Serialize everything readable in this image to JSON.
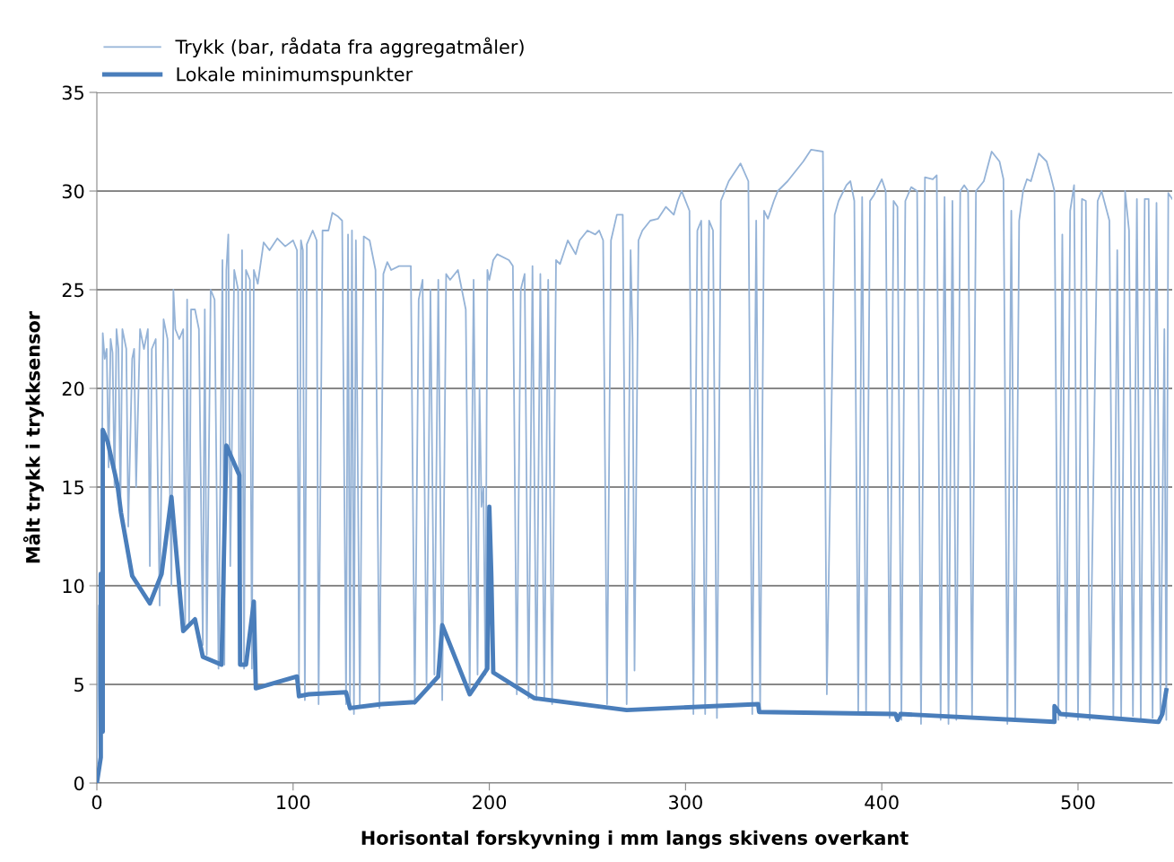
{
  "chart_data": {
    "type": "line",
    "xlabel": "Horisontal forskyvning i mm langs skivens overkant",
    "ylabel": "Målt trykk i trykksensor",
    "xlim": [
      0,
      548
    ],
    "xticks": [
      0,
      100,
      200,
      300,
      400,
      500
    ],
    "ylim": [
      0,
      35
    ],
    "yticks": [
      0,
      5,
      10,
      15,
      20,
      25,
      30,
      35
    ],
    "grid": "y",
    "legend": "top left",
    "marker": "none",
    "line_style": "solid",
    "series": [
      {
        "name": "Trykk (bar, rådata fra aggregatmåler)",
        "color": "#95b3d7",
        "x": [
          0,
          1,
          2,
          3,
          4,
          5,
          6,
          7,
          8,
          9,
          10,
          11,
          12,
          13,
          15,
          16,
          18,
          19,
          20,
          22,
          24,
          26,
          27,
          28,
          30,
          32,
          34,
          36,
          38,
          39,
          40,
          42,
          44,
          45,
          46,
          47,
          48,
          50,
          52,
          54,
          55,
          56,
          58,
          60,
          62,
          64,
          65,
          66,
          67,
          68,
          70,
          72,
          73,
          74,
          75,
          76,
          78,
          79,
          80,
          82,
          85,
          88,
          92,
          96,
          100,
          102,
          103,
          104,
          105,
          106,
          107,
          110,
          112,
          113,
          115,
          118,
          120,
          123,
          125,
          127,
          128,
          129,
          130,
          131,
          132,
          134,
          136,
          139,
          142,
          144,
          146,
          148,
          150,
          154,
          160,
          162,
          164,
          166,
          168,
          170,
          172,
          174,
          176,
          178,
          180,
          184,
          188,
          190,
          192,
          194,
          195,
          196,
          197,
          198,
          199,
          200,
          202,
          204,
          210,
          212,
          214,
          216,
          218,
          220,
          222,
          224,
          226,
          228,
          230,
          232,
          234,
          236,
          240,
          244,
          246,
          250,
          254,
          256,
          258,
          260,
          262,
          265,
          268,
          270,
          272,
          273,
          274,
          276,
          278,
          282,
          286,
          290,
          294,
          296,
          298,
          302,
          304,
          306,
          308,
          310,
          312,
          314,
          316,
          318,
          322,
          328,
          332,
          334,
          336,
          338,
          340,
          342,
          345,
          347,
          352,
          360,
          364,
          370,
          372,
          376,
          378,
          382,
          384,
          386,
          388,
          390,
          392,
          394,
          396,
          400,
          402,
          404,
          406,
          408,
          410,
          412,
          415,
          418,
          420,
          422,
          426,
          428,
          430,
          432,
          434,
          436,
          438,
          440,
          442,
          444,
          446,
          448,
          452,
          456,
          460,
          462,
          464,
          466,
          468,
          470,
          472,
          474,
          476,
          480,
          484,
          486,
          488,
          490,
          492,
          494,
          496,
          498,
          500,
          502,
          504,
          506,
          510,
          512,
          516,
          518,
          520,
          522,
          524,
          526,
          528,
          530,
          532,
          534,
          536,
          538,
          540,
          542,
          544,
          545,
          546,
          548
        ],
        "values": [
          1,
          9,
          3,
          22.8,
          21.5,
          22,
          16,
          22.5,
          21.8,
          15,
          23,
          22,
          14,
          23,
          22,
          13,
          21.5,
          22,
          15,
          23,
          22,
          23,
          11,
          22,
          22.5,
          9,
          23.5,
          22.5,
          10,
          25,
          23,
          22.5,
          23,
          8,
          24.5,
          8,
          24,
          24,
          23,
          7,
          24,
          6.5,
          25,
          24.5,
          5.8,
          26.5,
          6,
          26,
          27.8,
          11,
          26,
          25,
          6,
          27,
          5.8,
          26,
          25.5,
          5.8,
          26,
          25.3,
          27.4,
          27,
          27.6,
          27.2,
          27.5,
          27,
          5,
          27.5,
          27,
          4.2,
          27.3,
          28,
          27.5,
          4,
          28,
          28,
          28.9,
          28.7,
          28.5,
          4,
          27.8,
          3.7,
          28,
          3.5,
          27.5,
          3.9,
          27.7,
          27.5,
          26,
          3.8,
          25.8,
          26.4,
          26,
          26.2,
          26.2,
          4,
          24.5,
          25.5,
          5,
          25,
          5.5,
          25.5,
          4.2,
          25.8,
          25.5,
          26,
          24,
          4.5,
          25.5,
          5.5,
          20,
          14,
          15,
          5.5,
          26,
          25.5,
          26.5,
          26.8,
          26.5,
          26.2,
          4.5,
          25,
          25.8,
          4.3,
          26.2,
          4.2,
          25.8,
          4.2,
          25.5,
          4,
          26.5,
          26.3,
          27.5,
          26.8,
          27.5,
          28,
          27.8,
          28,
          27.5,
          4,
          27.5,
          28.8,
          28.8,
          4,
          27,
          22.5,
          5.7,
          27.5,
          28,
          28.5,
          28.6,
          29.2,
          28.8,
          29.5,
          30,
          29,
          3.5,
          28,
          28.5,
          3.5,
          28.5,
          28,
          3.3,
          29.5,
          30.5,
          31.4,
          30.5,
          3.5,
          28.5,
          3.6,
          29,
          28.6,
          29.5,
          30,
          30.5,
          31.5,
          32.1,
          32,
          4.5,
          28.8,
          29.5,
          30.3,
          30.5,
          29.5,
          3.6,
          29.7,
          3.5,
          29.5,
          29.8,
          30.6,
          30,
          3.3,
          29.5,
          29.2,
          3.2,
          29.5,
          30.2,
          30,
          3,
          30.7,
          30.6,
          30.8,
          3.2,
          29.7,
          3,
          29.5,
          3.2,
          30,
          30.3,
          30,
          3.3,
          30,
          30.5,
          32,
          31.5,
          30.6,
          3,
          29,
          3.2,
          28.5,
          30,
          30.6,
          30.5,
          31.9,
          31.5,
          30.8,
          30,
          3.2,
          27.8,
          3.3,
          29,
          30.3,
          3.2,
          29.6,
          29.5,
          3.2,
          29.5,
          30,
          28.5,
          3.3,
          27,
          3.3,
          30,
          28,
          3.4,
          29.6,
          3.3,
          29.6,
          29.6,
          3.3,
          29.4,
          3.5,
          23,
          3.2,
          29.9,
          29.6
        ]
      },
      {
        "name": "Lokale minimumspunkter",
        "color": "#4a7ebb",
        "x": [
          0,
          2,
          2,
          3,
          3,
          5.5,
          10.5,
          12.3,
          18,
          27,
          33,
          38,
          44,
          50,
          54,
          63.5,
          66,
          72.6,
          73,
          76,
          80,
          81,
          102,
          103,
          108,
          127,
          129,
          145,
          162,
          174,
          176,
          190,
          199,
          200,
          201,
          202,
          223,
          270,
          337,
          337.5,
          407,
          408,
          409.5,
          488,
          488,
          491,
          541,
          543,
          545
        ],
        "values": [
          0,
          1.3,
          10.6,
          2.6,
          17.9,
          17.3,
          15.1,
          13.7,
          10.5,
          9.1,
          10.6,
          14.5,
          7.7,
          8.3,
          6.4,
          6.0,
          17.1,
          15.6,
          6.0,
          6.0,
          9.2,
          4.8,
          5.4,
          4.4,
          4.5,
          4.6,
          3.8,
          4.0,
          4.1,
          5.4,
          8.0,
          4.5,
          5.8,
          14.0,
          10.6,
          5.6,
          4.3,
          3.7,
          4.0,
          3.6,
          3.5,
          3.2,
          3.5,
          3.1,
          3.9,
          3.5,
          3.1,
          3.5,
          4.7
        ]
      }
    ]
  }
}
